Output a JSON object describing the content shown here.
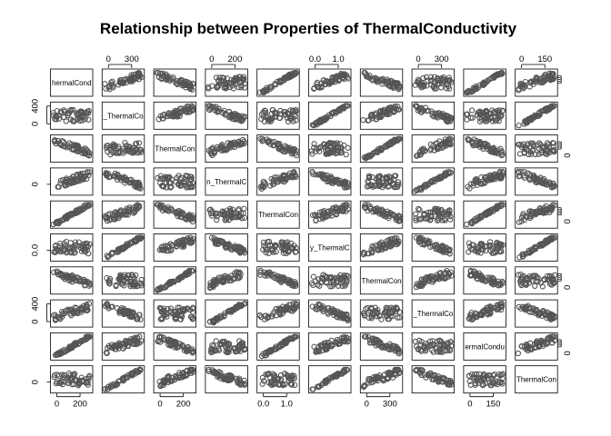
{
  "chart_data": {
    "type": "scatter-matrix",
    "title": "Relationship between Properties of ThermalConductivity",
    "variables": [
      "ThermalConductivity",
      "_ThermalConductivity",
      "ThermalConductivity",
      "n_ThermalConductivity",
      "ThermalConductivity",
      "y_ThermalConductivity",
      "ThermalConductivity",
      "_ThermalConductivity",
      "ThermalConductivity",
      "ThermalConductivity"
    ],
    "diagonal_labels": [
      "hermalCond",
      "_ThermalCo",
      "ThermalCon",
      "n_ThermalC",
      "ThermalCon",
      "y_ThermalC",
      "ThermalCon",
      "_ThermalCo",
      "ermalCondu",
      "ThermalCon"
    ],
    "axes": {
      "top": [
        {
          "panel": 2,
          "ticks": [
            "0",
            "300"
          ]
        },
        {
          "panel": 4,
          "ticks": [
            "0",
            "200"
          ]
        },
        {
          "panel": 6,
          "ticks": [
            "0.0",
            "1.0"
          ]
        },
        {
          "panel": 8,
          "ticks": [
            "0",
            "300"
          ]
        },
        {
          "panel": 10,
          "ticks": [
            "0",
            "150"
          ]
        }
      ],
      "bottom": [
        {
          "panel": 1,
          "ticks": [
            "0",
            "200"
          ]
        },
        {
          "panel": 3,
          "ticks": [
            "0",
            "200"
          ]
        },
        {
          "panel": 5,
          "ticks": [
            "0.0",
            "1.0"
          ]
        },
        {
          "panel": 7,
          "ticks": [
            "0",
            "300"
          ]
        },
        {
          "panel": 9,
          "ticks": [
            "0",
            "150"
          ]
        }
      ],
      "left": [
        {
          "panel": 2,
          "ticks": [
            "0",
            "400"
          ]
        },
        {
          "panel": 4,
          "ticks": [
            "0"
          ]
        },
        {
          "panel": 6,
          "ticks": [
            "0.0"
          ]
        },
        {
          "panel": 8,
          "ticks": [
            "0",
            "400"
          ]
        },
        {
          "panel": 10,
          "ticks": [
            "0"
          ]
        }
      ],
      "right": [
        {
          "panel": 1,
          "ticks": [
            ""
          ]
        },
        {
          "panel": 3,
          "ticks": [
            "0"
          ]
        },
        {
          "panel": 5,
          "ticks": [
            "0"
          ]
        },
        {
          "panel": 7,
          "ticks": [
            "0"
          ]
        },
        {
          "panel": 9,
          "ticks": [
            "0"
          ]
        }
      ]
    },
    "point_color": "#555555",
    "grid": false,
    "legend": "none"
  }
}
